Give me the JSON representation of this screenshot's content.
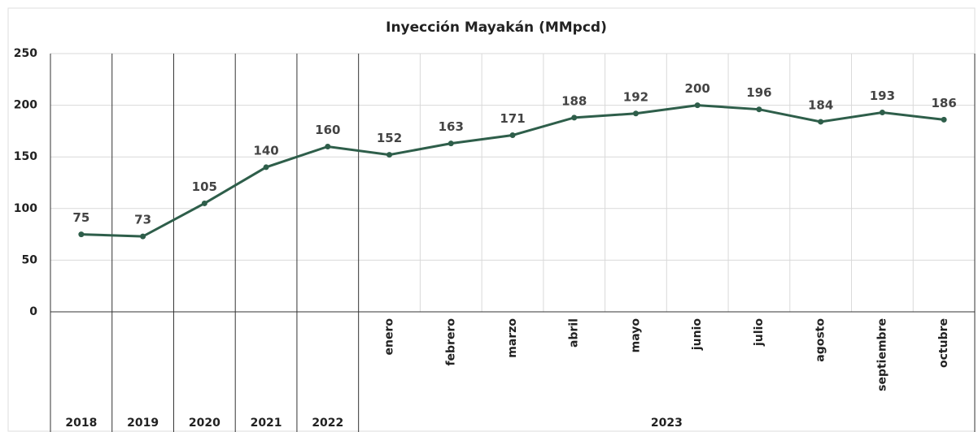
{
  "chart_data": {
    "type": "line",
    "title": "Inyección Mayakán  (MMpcd)",
    "categories": [
      "2018",
      "2019",
      "2020",
      "2021",
      "2022",
      "enero",
      "febrero",
      "marzo",
      "abril",
      "mayo",
      "junio",
      "julio",
      "agosto",
      "septiembre",
      "octubre"
    ],
    "category_group": "2023",
    "values": [
      75,
      73,
      105,
      140,
      160,
      152,
      163,
      171,
      188,
      192,
      200,
      196,
      184,
      193,
      186
    ],
    "color": "#2e5e4a",
    "ylim": [
      0,
      250
    ],
    "yticks": [
      0,
      50,
      100,
      150,
      200,
      250
    ],
    "grid": true
  }
}
